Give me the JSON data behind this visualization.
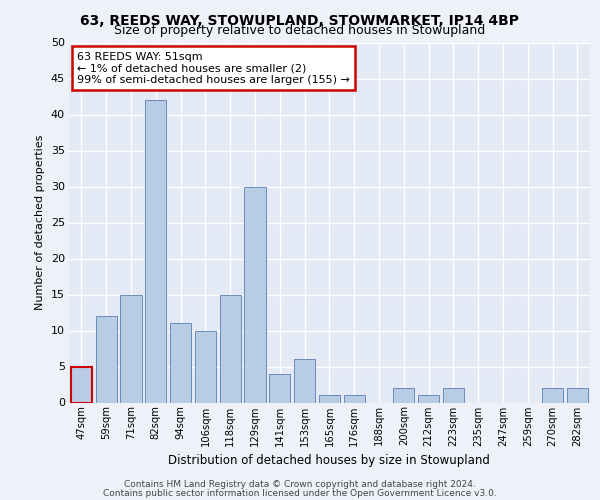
{
  "title1": "63, REEDS WAY, STOWUPLAND, STOWMARKET, IP14 4BP",
  "title2": "Size of property relative to detached houses in Stowupland",
  "xlabel": "Distribution of detached houses by size in Stowupland",
  "ylabel": "Number of detached properties",
  "categories": [
    "47sqm",
    "59sqm",
    "71sqm",
    "82sqm",
    "94sqm",
    "106sqm",
    "118sqm",
    "129sqm",
    "141sqm",
    "153sqm",
    "165sqm",
    "176sqm",
    "188sqm",
    "200sqm",
    "212sqm",
    "223sqm",
    "235sqm",
    "247sqm",
    "259sqm",
    "270sqm",
    "282sqm"
  ],
  "values": [
    5,
    12,
    15,
    42,
    11,
    10,
    15,
    30,
    4,
    6,
    1,
    1,
    0,
    2,
    1,
    2,
    0,
    0,
    0,
    2,
    2
  ],
  "bar_color": "#b8cce4",
  "bar_edge_color": "#5a7fb5",
  "annotation_box_color": "#ffffff",
  "annotation_box_edge": "#cc0000",
  "annotation_line1": "63 REEDS WAY: 51sqm",
  "annotation_line2": "← 1% of detached houses are smaller (2)",
  "annotation_line3": "99% of semi-detached houses are larger (155) →",
  "highlight_bar_edge": "#cc0000",
  "ylim": [
    0,
    50
  ],
  "yticks": [
    0,
    5,
    10,
    15,
    20,
    25,
    30,
    35,
    40,
    45,
    50
  ],
  "footer1": "Contains HM Land Registry data © Crown copyright and database right 2024.",
  "footer2": "Contains public sector information licensed under the Open Government Licence v3.0.",
  "bg_color": "#eef2f8",
  "plot_bg_color": "#e4eaf5"
}
